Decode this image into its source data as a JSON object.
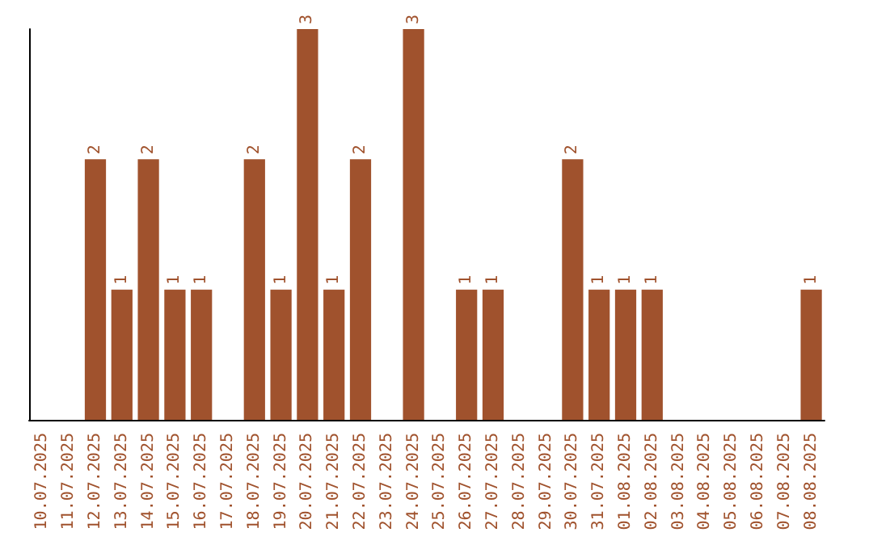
{
  "chart_data": {
    "type": "bar",
    "categories": [
      "10.07.2025",
      "11.07.2025",
      "12.07.2025",
      "13.07.2025",
      "14.07.2025",
      "15.07.2025",
      "16.07.2025",
      "17.07.2025",
      "18.07.2025",
      "19.07.2025",
      "20.07.2025",
      "21.07.2025",
      "22.07.2025",
      "23.07.2025",
      "24.07.2025",
      "25.07.2025",
      "26.07.2025",
      "27.07.2025",
      "28.07.2025",
      "29.07.2025",
      "30.07.2025",
      "31.07.2025",
      "01.08.2025",
      "02.08.2025",
      "03.08.2025",
      "04.08.2025",
      "05.08.2025",
      "06.08.2025",
      "07.08.2025",
      "08.08.2025"
    ],
    "values": [
      0,
      0,
      2,
      1,
      2,
      1,
      1,
      0,
      2,
      1,
      3,
      1,
      2,
      0,
      3,
      0,
      1,
      1,
      0,
      0,
      2,
      1,
      1,
      1,
      0,
      0,
      0,
      0,
      0,
      1
    ],
    "value_labels": [
      null,
      null,
      "2",
      "1",
      "2",
      "1",
      "1",
      null,
      "2",
      "1",
      "3",
      "1",
      "2",
      null,
      "3",
      null,
      "1",
      "1",
      null,
      null,
      "2",
      "1",
      "1",
      "1",
      null,
      null,
      null,
      null,
      null,
      "1"
    ],
    "color": "#a0522d",
    "tick_labels": "x",
    "grid": false
  }
}
